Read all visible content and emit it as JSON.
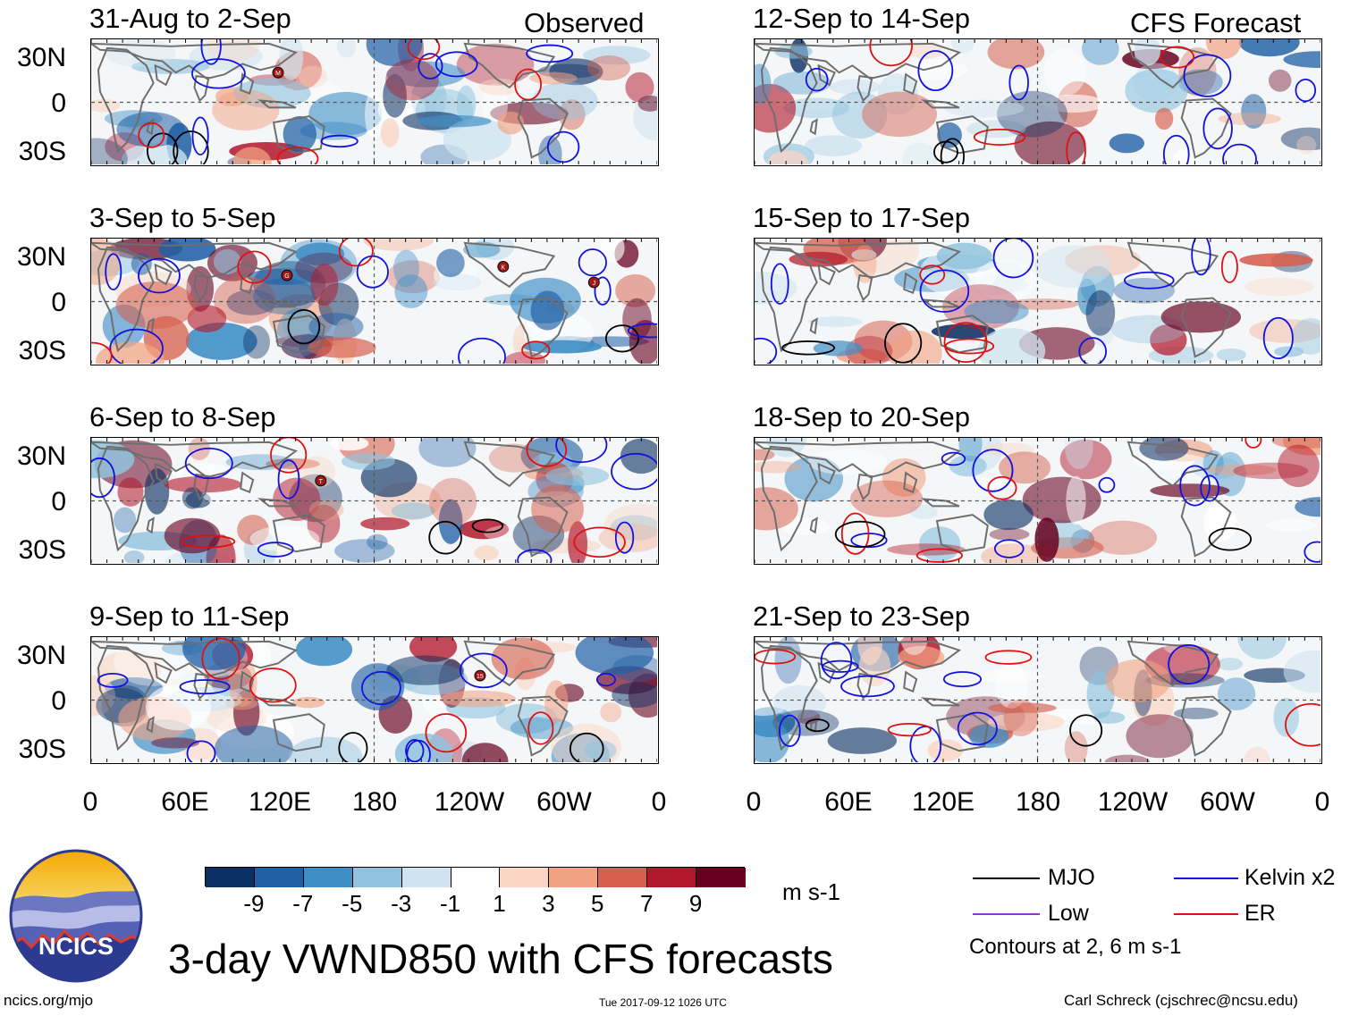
{
  "header": {
    "observed_label": "Observed",
    "forecast_label": "CFS Forecast"
  },
  "panels": [
    {
      "title": "31-Aug to 2-Sep",
      "column": "observed",
      "row": 0
    },
    {
      "title": "3-Sep to 5-Sep",
      "column": "observed",
      "row": 1
    },
    {
      "title": "6-Sep to 8-Sep",
      "column": "observed",
      "row": 2
    },
    {
      "title": "9-Sep to 11-Sep",
      "column": "observed",
      "row": 3
    },
    {
      "title": "12-Sep to 14-Sep",
      "column": "forecast",
      "row": 0
    },
    {
      "title": "15-Sep to 17-Sep",
      "column": "forecast",
      "row": 1
    },
    {
      "title": "18-Sep to 20-Sep",
      "column": "forecast",
      "row": 2
    },
    {
      "title": "21-Sep to 23-Sep",
      "column": "forecast",
      "row": 3
    }
  ],
  "axes": {
    "lat_labels": [
      "30N",
      "0",
      "30S"
    ],
    "lon_labels": [
      "0",
      "60E",
      "120E",
      "180",
      "120W",
      "60W",
      "0"
    ]
  },
  "storm_markers": [
    {
      "panel": 0,
      "letter": "M"
    },
    {
      "panel": 1,
      "letter": "G"
    },
    {
      "panel": 1,
      "letter": "K"
    },
    {
      "panel": 1,
      "letter": "J"
    },
    {
      "panel": 2,
      "letter": "T"
    },
    {
      "panel": 3,
      "letter": "15"
    }
  ],
  "colorbar": {
    "colors": [
      "#0b2f63",
      "#1f5fa5",
      "#3f8fc6",
      "#8fc3de",
      "#cfe4f0",
      "#ffffff",
      "#fbd5c3",
      "#f2a281",
      "#d6604d",
      "#b2182b",
      "#67001f"
    ],
    "ticks": [
      "-9",
      "-7",
      "-5",
      "-3",
      "-1",
      "1",
      "3",
      "5",
      "7",
      "9"
    ],
    "units": "m s-1"
  },
  "legend": {
    "items": [
      {
        "label": "MJO",
        "color": "#000000"
      },
      {
        "label": "Kelvin x2",
        "color": "#1010e0"
      },
      {
        "label": "Low",
        "color": "#9b30d0"
      },
      {
        "label": "ER",
        "color": "#e01010"
      }
    ],
    "note": "Contours at 2, 6 m s-1"
  },
  "logo": {
    "text": "NCICS"
  },
  "footer": {
    "title": "3-day VWND850 with CFS forecasts",
    "url": "ncics.org/mjo",
    "timestamp": "Tue 2017-09-12 1026 UTC",
    "credit": "Carl Schreck (cjschrec@ncsu.edu)"
  }
}
